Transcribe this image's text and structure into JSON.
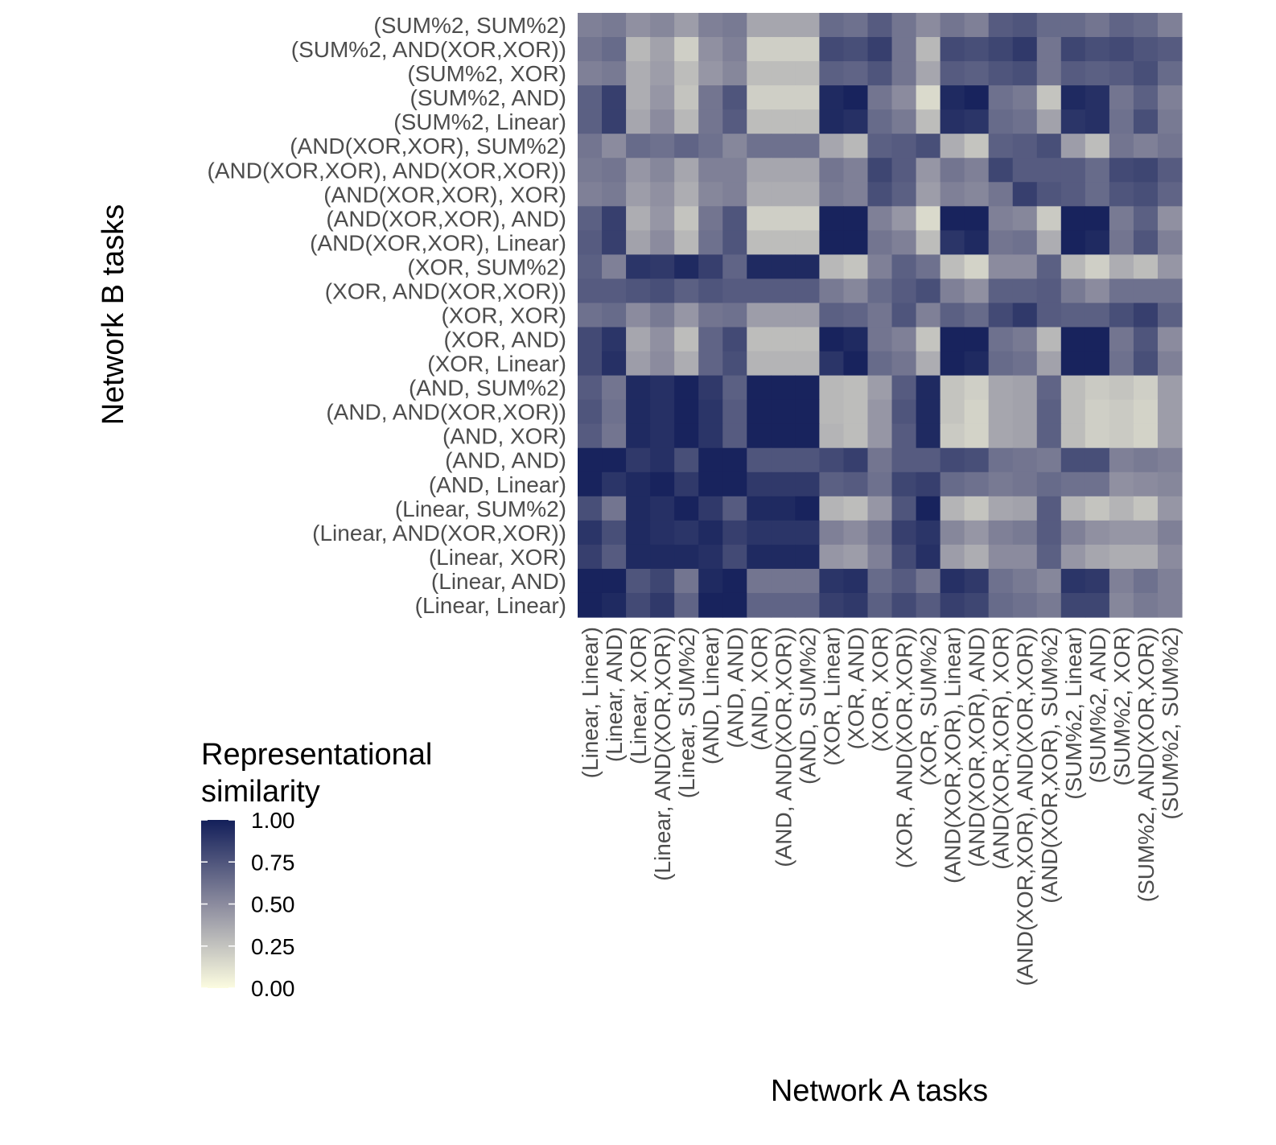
{
  "chart_data": {
    "type": "heatmap",
    "xlabel": "Network A tasks",
    "ylabel": "Network B tasks",
    "x_categories": [
      "(Linear, Linear)",
      "(Linear, AND)",
      "(Linear, XOR)",
      "(Linear, AND(XOR,XOR))",
      "(Linear, SUM%2)",
      "(AND, Linear)",
      "(AND, AND)",
      "(AND, XOR)",
      "(AND, AND(XOR,XOR))",
      "(AND, SUM%2)",
      "(XOR, Linear)",
      "(XOR, AND)",
      "(XOR, XOR)",
      "(XOR, AND(XOR,XOR))",
      "(XOR, SUM%2)",
      "(AND(XOR,XOR), Linear)",
      "(AND(XOR,XOR), AND)",
      "(AND(XOR,XOR), XOR)",
      "(AND(XOR,XOR), AND(XOR,XOR))",
      "(AND(XOR,XOR), SUM%2)",
      "(SUM%2, Linear)",
      "(SUM%2, AND)",
      "(SUM%2, XOR)",
      "(SUM%2, AND(XOR,XOR))",
      "(SUM%2, SUM%2)"
    ],
    "y_categories": [
      "(SUM%2, SUM%2)",
      "(SUM%2, AND(XOR,XOR))",
      "(SUM%2, XOR)",
      "(SUM%2, AND)",
      "(SUM%2, Linear)",
      "(AND(XOR,XOR), SUM%2)",
      "(AND(XOR,XOR), AND(XOR,XOR))",
      "(AND(XOR,XOR), XOR)",
      "(AND(XOR,XOR), AND)",
      "(AND(XOR,XOR), Linear)",
      "(XOR, SUM%2)",
      "(XOR, AND(XOR,XOR))",
      "(XOR, XOR)",
      "(XOR, AND)",
      "(XOR, Linear)",
      "(AND, SUM%2)",
      "(AND, AND(XOR,XOR))",
      "(AND, XOR)",
      "(AND, AND)",
      "(AND, Linear)",
      "(Linear, SUM%2)",
      "(Linear, AND(XOR,XOR))",
      "(Linear, XOR)",
      "(Linear, AND)",
      "(Linear, Linear)"
    ],
    "values": [
      [
        0.55,
        0.58,
        0.48,
        0.52,
        0.42,
        0.55,
        0.58,
        0.38,
        0.38,
        0.38,
        0.65,
        0.62,
        0.72,
        0.6,
        0.5,
        0.6,
        0.55,
        0.72,
        0.75,
        0.65,
        0.65,
        0.6,
        0.68,
        0.65,
        0.55
      ],
      [
        0.6,
        0.65,
        0.3,
        0.4,
        0.2,
        0.48,
        0.55,
        0.2,
        0.2,
        0.2,
        0.8,
        0.78,
        0.85,
        0.6,
        0.3,
        0.8,
        0.78,
        0.82,
        0.88,
        0.6,
        0.82,
        0.78,
        0.8,
        0.75,
        0.72
      ],
      [
        0.55,
        0.58,
        0.35,
        0.42,
        0.28,
        0.45,
        0.52,
        0.28,
        0.28,
        0.28,
        0.7,
        0.68,
        0.75,
        0.6,
        0.38,
        0.72,
        0.7,
        0.75,
        0.78,
        0.6,
        0.72,
        0.7,
        0.72,
        0.78,
        0.65
      ],
      [
        0.7,
        0.85,
        0.35,
        0.45,
        0.25,
        0.6,
        0.75,
        0.2,
        0.2,
        0.2,
        0.95,
        0.98,
        0.6,
        0.5,
        0.15,
        0.95,
        0.98,
        0.62,
        0.58,
        0.25,
        0.95,
        0.92,
        0.6,
        0.7,
        0.55
      ],
      [
        0.7,
        0.85,
        0.38,
        0.5,
        0.3,
        0.6,
        0.72,
        0.28,
        0.28,
        0.28,
        0.95,
        0.92,
        0.65,
        0.58,
        0.28,
        0.92,
        0.9,
        0.65,
        0.62,
        0.4,
        0.9,
        0.92,
        0.62,
        0.78,
        0.58
      ],
      [
        0.6,
        0.5,
        0.65,
        0.62,
        0.68,
        0.62,
        0.52,
        0.62,
        0.62,
        0.62,
        0.38,
        0.3,
        0.7,
        0.72,
        0.78,
        0.35,
        0.25,
        0.7,
        0.72,
        0.78,
        0.42,
        0.28,
        0.6,
        0.55,
        0.6
      ],
      [
        0.58,
        0.6,
        0.45,
        0.52,
        0.38,
        0.55,
        0.55,
        0.38,
        0.38,
        0.38,
        0.6,
        0.55,
        0.82,
        0.72,
        0.45,
        0.6,
        0.55,
        0.82,
        0.72,
        0.72,
        0.72,
        0.65,
        0.8,
        0.82,
        0.72
      ],
      [
        0.55,
        0.58,
        0.42,
        0.48,
        0.35,
        0.52,
        0.55,
        0.35,
        0.35,
        0.35,
        0.58,
        0.55,
        0.78,
        0.7,
        0.42,
        0.55,
        0.52,
        0.6,
        0.85,
        0.75,
        0.72,
        0.65,
        0.75,
        0.78,
        0.68
      ],
      [
        0.7,
        0.85,
        0.35,
        0.45,
        0.25,
        0.6,
        0.75,
        0.2,
        0.2,
        0.2,
        0.98,
        0.98,
        0.55,
        0.45,
        0.15,
        0.98,
        0.98,
        0.55,
        0.52,
        0.22,
        0.98,
        0.98,
        0.58,
        0.7,
        0.48
      ],
      [
        0.72,
        0.85,
        0.4,
        0.5,
        0.3,
        0.62,
        0.75,
        0.28,
        0.28,
        0.28,
        0.98,
        0.98,
        0.6,
        0.55,
        0.28,
        0.9,
        0.95,
        0.6,
        0.62,
        0.35,
        0.98,
        0.95,
        0.6,
        0.75,
        0.55
      ],
      [
        0.7,
        0.55,
        0.9,
        0.88,
        0.95,
        0.85,
        0.68,
        0.95,
        0.95,
        0.95,
        0.3,
        0.25,
        0.55,
        0.7,
        0.62,
        0.28,
        0.18,
        0.5,
        0.5,
        0.7,
        0.3,
        0.2,
        0.35,
        0.28,
        0.45
      ],
      [
        0.72,
        0.72,
        0.75,
        0.78,
        0.7,
        0.75,
        0.72,
        0.72,
        0.72,
        0.72,
        0.58,
        0.52,
        0.65,
        0.72,
        0.78,
        0.55,
        0.48,
        0.7,
        0.7,
        0.72,
        0.58,
        0.5,
        0.62,
        0.62,
        0.62
      ],
      [
        0.62,
        0.65,
        0.5,
        0.58,
        0.45,
        0.6,
        0.62,
        0.42,
        0.42,
        0.42,
        0.7,
        0.68,
        0.6,
        0.75,
        0.55,
        0.7,
        0.65,
        0.8,
        0.88,
        0.72,
        0.7,
        0.7,
        0.78,
        0.85,
        0.7
      ],
      [
        0.8,
        0.9,
        0.38,
        0.48,
        0.28,
        0.68,
        0.8,
        0.28,
        0.28,
        0.28,
        0.98,
        0.95,
        0.6,
        0.55,
        0.25,
        0.98,
        0.98,
        0.62,
        0.58,
        0.3,
        0.98,
        0.98,
        0.6,
        0.75,
        0.5
      ],
      [
        0.8,
        0.92,
        0.42,
        0.5,
        0.35,
        0.68,
        0.78,
        0.32,
        0.32,
        0.32,
        0.9,
        0.98,
        0.65,
        0.6,
        0.35,
        0.98,
        0.95,
        0.65,
        0.62,
        0.4,
        0.98,
        0.98,
        0.62,
        0.78,
        0.55
      ],
      [
        0.72,
        0.6,
        0.95,
        0.92,
        0.98,
        0.88,
        0.7,
        0.98,
        0.98,
        0.98,
        0.3,
        0.28,
        0.42,
        0.72,
        0.95,
        0.25,
        0.2,
        0.38,
        0.4,
        0.68,
        0.28,
        0.22,
        0.25,
        0.2,
        0.42
      ],
      [
        0.75,
        0.62,
        0.95,
        0.92,
        0.98,
        0.9,
        0.72,
        0.98,
        0.98,
        0.98,
        0.3,
        0.28,
        0.45,
        0.75,
        0.95,
        0.25,
        0.18,
        0.38,
        0.4,
        0.7,
        0.28,
        0.2,
        0.22,
        0.18,
        0.42
      ],
      [
        0.72,
        0.6,
        0.95,
        0.92,
        0.98,
        0.9,
        0.72,
        0.98,
        0.98,
        0.98,
        0.32,
        0.28,
        0.45,
        0.72,
        0.95,
        0.22,
        0.18,
        0.38,
        0.4,
        0.7,
        0.28,
        0.2,
        0.22,
        0.18,
        0.42
      ],
      [
        0.98,
        0.98,
        0.88,
        0.92,
        0.78,
        0.98,
        0.98,
        0.75,
        0.75,
        0.75,
        0.8,
        0.85,
        0.6,
        0.72,
        0.72,
        0.8,
        0.78,
        0.62,
        0.6,
        0.58,
        0.78,
        0.78,
        0.55,
        0.58,
        0.55
      ],
      [
        0.98,
        0.9,
        0.95,
        0.98,
        0.88,
        0.98,
        0.98,
        0.88,
        0.88,
        0.88,
        0.7,
        0.72,
        0.62,
        0.82,
        0.85,
        0.65,
        0.62,
        0.58,
        0.6,
        0.65,
        0.62,
        0.62,
        0.48,
        0.5,
        0.52
      ],
      [
        0.78,
        0.6,
        0.95,
        0.92,
        0.98,
        0.88,
        0.72,
        0.95,
        0.95,
        0.98,
        0.32,
        0.28,
        0.45,
        0.75,
        0.98,
        0.32,
        0.25,
        0.38,
        0.4,
        0.72,
        0.32,
        0.25,
        0.32,
        0.25,
        0.45
      ],
      [
        0.9,
        0.78,
        0.95,
        0.92,
        0.9,
        0.95,
        0.85,
        0.9,
        0.9,
        0.9,
        0.55,
        0.5,
        0.6,
        0.85,
        0.9,
        0.52,
        0.45,
        0.55,
        0.58,
        0.72,
        0.55,
        0.48,
        0.45,
        0.45,
        0.55
      ],
      [
        0.85,
        0.72,
        0.95,
        0.95,
        0.95,
        0.92,
        0.8,
        0.95,
        0.95,
        0.95,
        0.45,
        0.42,
        0.55,
        0.8,
        0.92,
        0.42,
        0.35,
        0.5,
        0.5,
        0.7,
        0.45,
        0.38,
        0.35,
        0.35,
        0.5
      ],
      [
        0.98,
        0.98,
        0.75,
        0.82,
        0.6,
        0.95,
        0.98,
        0.6,
        0.6,
        0.6,
        0.9,
        0.92,
        0.65,
        0.72,
        0.6,
        0.92,
        0.88,
        0.62,
        0.58,
        0.52,
        0.9,
        0.88,
        0.55,
        0.62,
        0.55
      ],
      [
        0.98,
        0.95,
        0.8,
        0.88,
        0.68,
        0.98,
        0.98,
        0.68,
        0.68,
        0.68,
        0.85,
        0.88,
        0.7,
        0.8,
        0.72,
        0.85,
        0.82,
        0.65,
        0.62,
        0.58,
        0.82,
        0.82,
        0.52,
        0.58,
        0.55
      ]
    ],
    "legend": {
      "title": [
        "Representational",
        "similarity"
      ],
      "ticks": [
        1.0,
        0.75,
        0.5,
        0.25,
        0.0
      ],
      "tick_labels": [
        "1.00",
        "0.75",
        "0.50",
        "0.25",
        "0.00"
      ],
      "range": [
        0,
        1
      ]
    },
    "colors": {
      "low": "#fcfce0",
      "mid": "#8b8b9e",
      "high": "#131f5a"
    },
    "grid": false
  }
}
